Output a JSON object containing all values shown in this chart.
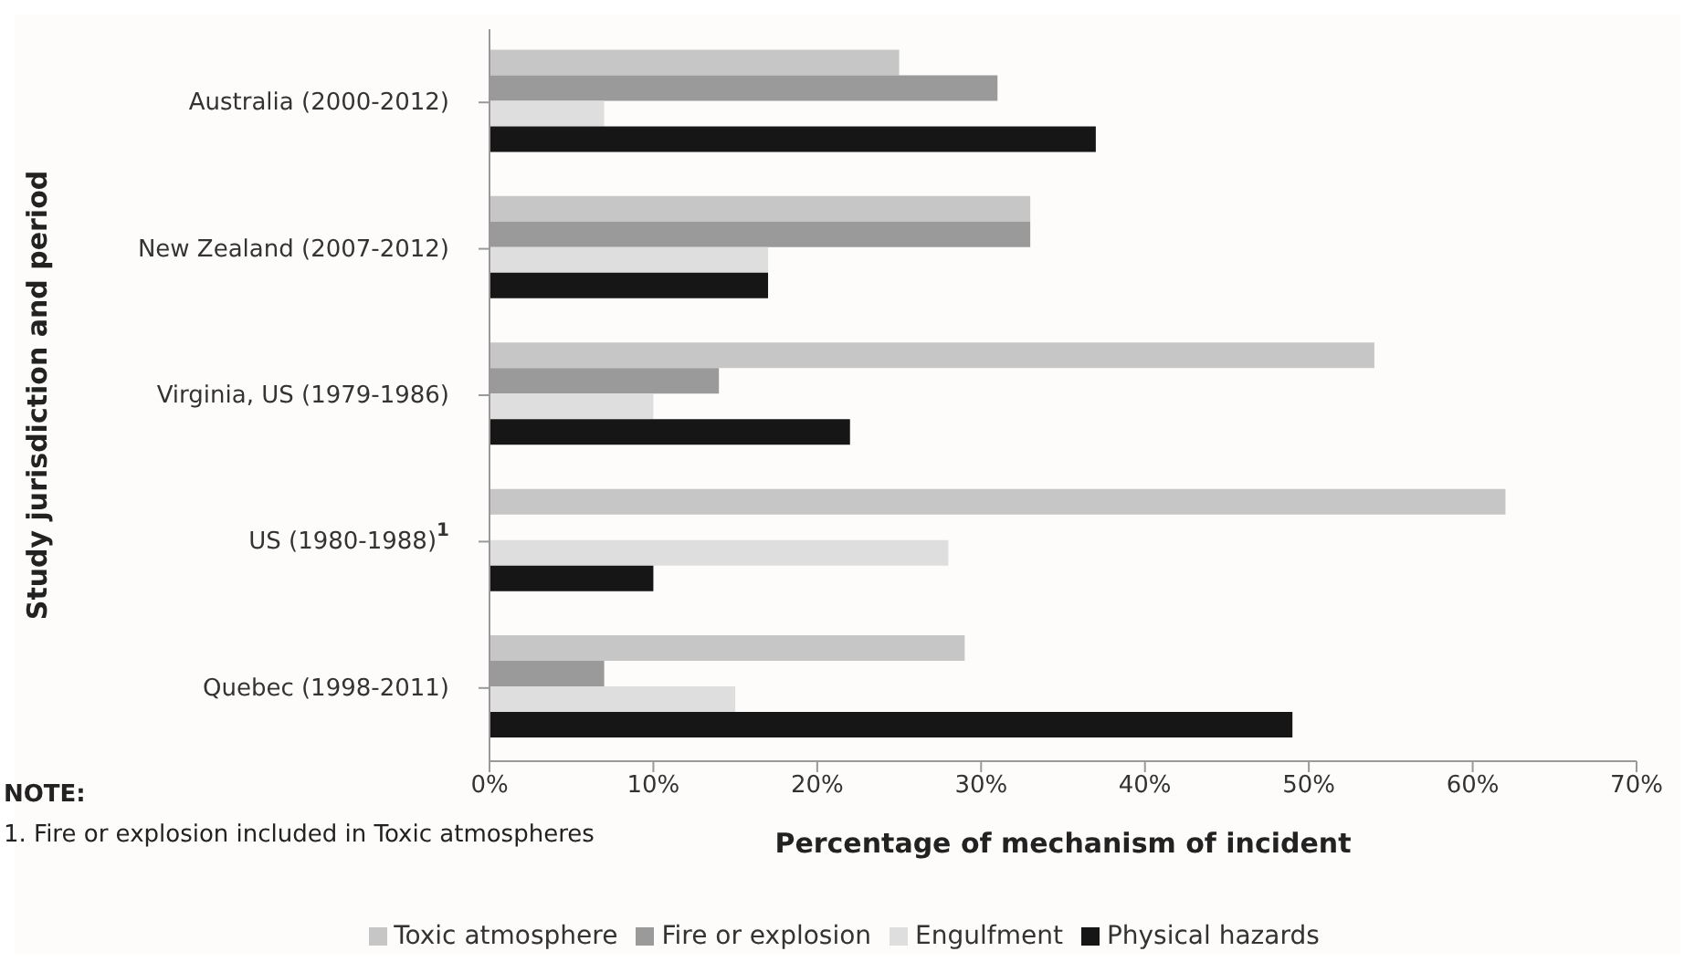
{
  "chart_data": {
    "type": "bar",
    "orientation": "horizontal",
    "xlabel": "Percentage of mechanism of incident",
    "ylabel": "Study jurisdiction and period",
    "categories": [
      "Australia (2000-2012)",
      "New Zealand (2007-2012)",
      "Virginia, US (1979-1986)",
      "US (1980-1988)$^{1}$",
      "Quebec (1998-2011)"
    ],
    "series": [
      {
        "name": "Toxic atmosphere",
        "color": "#c6c6c6",
        "values": [
          25,
          33,
          54,
          62,
          29
        ]
      },
      {
        "name": "Fire or explosion",
        "color": "#9a9a9a",
        "values": [
          31,
          33,
          14,
          null,
          7
        ]
      },
      {
        "name": "Engulfment",
        "color": "#dedede",
        "values": [
          7,
          17,
          10,
          28,
          15
        ]
      },
      {
        "name": "Physical hazards",
        "color": "#161616",
        "values": [
          37,
          17,
          22,
          10,
          49
        ]
      }
    ],
    "xlim": [
      0,
      70
    ],
    "xticks": [
      {
        "value": 0,
        "label": "0%"
      },
      {
        "value": 10,
        "label": "10%"
      },
      {
        "value": 20,
        "label": "20%"
      },
      {
        "value": 30,
        "label": "30%"
      },
      {
        "value": 40,
        "label": "40%"
      },
      {
        "value": 50,
        "label": "50%"
      },
      {
        "value": 60,
        "label": "60%"
      },
      {
        "value": 70,
        "label": "70%"
      }
    ],
    "legend": "bottom",
    "annotations": [
      "NOTE:",
      "1. Fire or explosion included in Toxic atmospheres"
    ]
  }
}
